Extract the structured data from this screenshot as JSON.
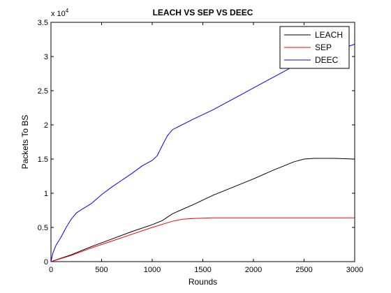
{
  "chart_data": {
    "type": "line",
    "title": "LEACH VS SEP VS DEEC",
    "xlabel": "Rounds",
    "ylabel": "Packets To BS",
    "xlim": [
      0,
      3000
    ],
    "ylim": [
      0,
      35000
    ],
    "x_ticks": [
      0,
      500,
      1000,
      1500,
      2000,
      2500,
      3000
    ],
    "y_ticks": [
      0,
      0.5,
      1,
      1.5,
      2,
      2.5,
      3,
      3.5
    ],
    "y_tick_labels": [
      "0",
      "0.5",
      "1",
      "1.5",
      "2",
      "2.5",
      "3",
      "3.5"
    ],
    "y_exponent_label": "x 10",
    "y_exponent_power": "4",
    "grid": false,
    "legend_position": "top-right",
    "series": [
      {
        "name": "LEACH",
        "color": "#000000",
        "x": [
          0,
          200,
          400,
          600,
          800,
          1000,
          1100,
          1200,
          1400,
          1600,
          1800,
          2000,
          2200,
          2400,
          2500,
          2600,
          2800,
          3000
        ],
        "y": [
          0,
          1000,
          2200,
          3300,
          4400,
          5400,
          6000,
          7000,
          8300,
          9700,
          10900,
          12100,
          13400,
          14600,
          15000,
          15100,
          15100,
          15000
        ]
      },
      {
        "name": "SEP",
        "color": "#ff0000",
        "x": [
          0,
          200,
          400,
          600,
          800,
          1000,
          1200,
          1300,
          1400,
          1600,
          2000,
          2500,
          3000
        ],
        "y": [
          0,
          900,
          2000,
          3000,
          4000,
          5000,
          5900,
          6200,
          6300,
          6400,
          6400,
          6400,
          6400
        ]
      },
      {
        "name": "DEEC",
        "color": "#0000ff",
        "x": [
          0,
          20,
          50,
          100,
          150,
          200,
          250,
          300,
          400,
          500,
          600,
          700,
          800,
          900,
          1000,
          1050,
          1100,
          1150,
          1200,
          1400,
          1600,
          1800,
          2000,
          2200,
          2400,
          2600,
          2800,
          3000
        ],
        "y": [
          0,
          1300,
          2400,
          3600,
          5000,
          6200,
          7100,
          7600,
          8500,
          9800,
          10900,
          11900,
          12900,
          14000,
          14800,
          15500,
          17000,
          18400,
          19300,
          20800,
          22200,
          23800,
          25400,
          27000,
          28600,
          30000,
          30800,
          31800
        ]
      }
    ]
  }
}
